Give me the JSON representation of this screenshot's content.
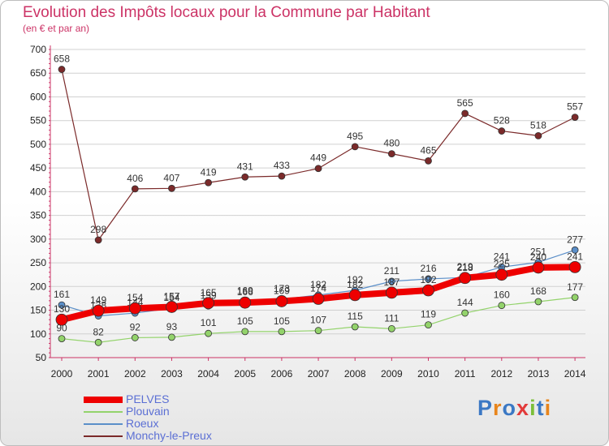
{
  "title": "Evolution des Impôts locaux pour la Commune par Habitant",
  "subtitle": "(en € et par an)",
  "logo": {
    "text": "Proxiti",
    "colors": [
      "#3b78c4",
      "#e8851c",
      "#3b78c4",
      "#e23a3a",
      "#7cbf3a",
      "#3b78c4",
      "#e8851c"
    ]
  },
  "chart_data": {
    "type": "line",
    "x": [
      2000,
      2001,
      2002,
      2003,
      2004,
      2005,
      2006,
      2007,
      2008,
      2009,
      2010,
      2011,
      2012,
      2013,
      2014
    ],
    "ylim": [
      50,
      700
    ],
    "yticks": [
      50,
      100,
      150,
      200,
      250,
      300,
      350,
      400,
      450,
      500,
      550,
      600,
      650,
      700
    ],
    "grid": true,
    "legend_position": "bottom-left",
    "series": [
      {
        "name": "Monchy-le-Preux",
        "color": "#7b2a2a",
        "width": 1.2,
        "marker": 4,
        "values": [
          658,
          298,
          406,
          407,
          419,
          431,
          433,
          449,
          495,
          480,
          465,
          565,
          528,
          518,
          557
        ]
      },
      {
        "name": "Roeux",
        "color": "#5b8fc9",
        "width": 1.2,
        "marker": 4,
        "values": [
          161,
          138,
          144,
          154,
          159,
          169,
          173,
          182,
          192,
          211,
          216,
          219,
          241,
          251,
          277
        ]
      },
      {
        "name": "Plouvain",
        "color": "#93d36b",
        "width": 1.2,
        "marker": 4,
        "values": [
          90,
          82,
          92,
          93,
          101,
          105,
          105,
          107,
          115,
          111,
          119,
          144,
          160,
          168,
          177
        ]
      },
      {
        "name": "PELVES",
        "color": "#ee0000",
        "width": 8,
        "marker": 7,
        "values": [
          130,
          149,
          154,
          157,
          165,
          166,
          169,
          174,
          182,
          187,
          192,
          218,
          225,
          240,
          241
        ]
      }
    ]
  }
}
